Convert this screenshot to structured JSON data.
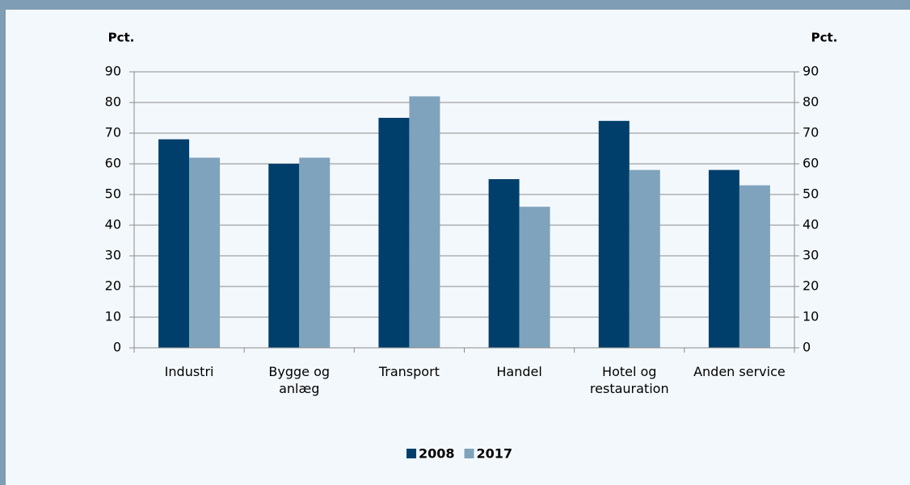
{
  "chart_data": {
    "type": "bar",
    "y_label": "Pct.",
    "y2_label": "Pct.",
    "categories": [
      "Industri",
      "Bygge og anlæg",
      "Transport",
      "Handel",
      "Hotel og restauration",
      "Anden service"
    ],
    "series": [
      {
        "name": "2008",
        "color": "#003f6b",
        "values": [
          68,
          60,
          75,
          55,
          74,
          58
        ]
      },
      {
        "name": "2017",
        "color": "#7fa3bc",
        "values": [
          62,
          62,
          82,
          46,
          58,
          53
        ]
      }
    ],
    "ylim": [
      0,
      90
    ],
    "yticks": [
      0,
      10,
      20,
      30,
      40,
      50,
      60,
      70,
      80,
      90
    ],
    "y2lim": [
      0,
      90
    ],
    "y2ticks": [
      0,
      10,
      20,
      30,
      40,
      50,
      60,
      70,
      80,
      90
    ],
    "grid": true
  }
}
